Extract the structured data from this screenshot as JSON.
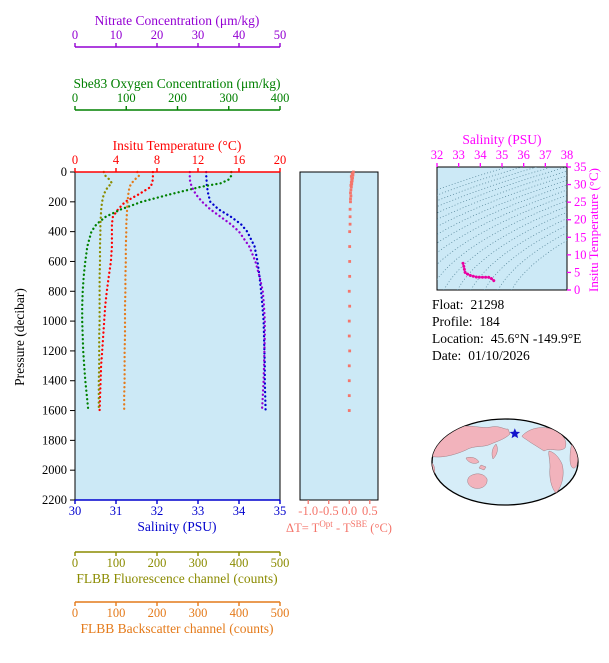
{
  "colors": {
    "nitrate": "#9400d3",
    "oxygen": "#008000",
    "temperature": "#ff0000",
    "salinity": "#0000cd",
    "fluorescence": "#8b8b00",
    "backscatter": "#e47a1a",
    "delta_t": "#f4756b",
    "ts_axis": "#ff00ff",
    "ts_curve": "#e800a0",
    "plot_bg": "#cce9f6",
    "map_land": "#f2b3bc",
    "map_ocean": "#d6edf8"
  },
  "labels": {
    "nitrate_axis": "Nitrate Concentration (μm/kg)",
    "oxygen_axis": "Sbe83 Oxygen Concentration (μm/kg)",
    "temperature_axis": "Insitu Temperature (°C)",
    "pressure_axis": "Pressure (decibar)",
    "salinity_axis": "Salinity (PSU)",
    "delta_t_prefix": "ΔT= T",
    "delta_t_sup1": "Opt",
    "delta_t_mid": " - T",
    "delta_t_sup2": "SBE",
    "delta_t_suffix": " (°C)",
    "ts_salinity_axis": "Salinity (PSU)",
    "ts_temperature_axis": "Insitu Temperature (°C)",
    "fluorescence_axis": "FLBB Fluorescence channel (counts)",
    "backscatter_axis": "FLBB Backscatter channel (counts)"
  },
  "info": {
    "float_label": "Float:",
    "float_value": "21298",
    "profile_label": "Profile:",
    "profile_value": "184",
    "location_label": "Location:",
    "location_value": "45.6°N  -149.9°E",
    "date_label": "Date:",
    "date_value": "01/10/2026"
  },
  "map": {
    "star": {
      "lat": 45.6,
      "lon": -149.9
    }
  },
  "chart_data": [
    {
      "id": "main_profile",
      "type": "line",
      "ylabel": "Pressure (decibar)",
      "ylim": [
        0,
        2200
      ],
      "yticks": [
        0,
        200,
        400,
        600,
        800,
        1000,
        1200,
        1400,
        1600,
        1800,
        2000,
        2200
      ],
      "pressure": [
        0,
        25,
        50,
        75,
        100,
        150,
        200,
        250,
        300,
        350,
        400,
        500,
        600,
        700,
        800,
        900,
        1000,
        1100,
        1200,
        1300,
        1400,
        1500,
        1600
      ],
      "series": [
        {
          "id": "salinity",
          "name": "Salinity (PSU)",
          "color": "#0000cd",
          "range": [
            30,
            35
          ],
          "ticks": [
            30,
            31,
            32,
            33,
            34,
            35
          ],
          "values": [
            33.2,
            33.2,
            33.21,
            33.21,
            33.22,
            33.25,
            33.3,
            33.5,
            33.8,
            34.05,
            34.2,
            34.38,
            34.45,
            34.5,
            34.54,
            34.57,
            34.6,
            34.61,
            34.62,
            34.63,
            34.63,
            34.64,
            34.65
          ]
        },
        {
          "id": "temperature",
          "name": "Insitu Temperature (°C)",
          "color": "#ff0000",
          "range": [
            0,
            20
          ],
          "ticks": [
            0,
            4,
            8,
            12,
            16,
            20
          ],
          "values": [
            7.6,
            7.6,
            7.6,
            7.5,
            7.4,
            6.2,
            4.9,
            4.2,
            3.7,
            3.6,
            3.6,
            3.6,
            3.5,
            3.3,
            3.1,
            2.95,
            2.85,
            2.75,
            2.65,
            2.55,
            2.5,
            2.45,
            2.4
          ]
        },
        {
          "id": "oxygen",
          "name": "Sbe83 Oxygen Concentration (μm/kg)",
          "color": "#008000",
          "range": [
            0,
            400
          ],
          "ticks": [
            0,
            100,
            200,
            300,
            400
          ],
          "values": [
            305,
            305,
            300,
            285,
            245,
            185,
            130,
            90,
            60,
            42,
            32,
            24,
            20,
            17,
            15,
            14,
            14,
            15,
            16,
            18,
            20,
            23,
            26
          ]
        },
        {
          "id": "nitrate",
          "name": "Nitrate Concentration (μm/kg)",
          "color": "#9400d3",
          "range": [
            0,
            50
          ],
          "ticks": [
            0,
            10,
            20,
            30,
            40,
            50
          ],
          "values": [
            28,
            28,
            28,
            28.2,
            28.5,
            29.5,
            31,
            33,
            35.5,
            38,
            40,
            42.5,
            44,
            45,
            45.8,
            46.1,
            46.3,
            46.3,
            46.2,
            46.1,
            46,
            45.8,
            45.6
          ]
        },
        {
          "id": "fluorescence",
          "name": "FLBB Fluorescence channel (counts)",
          "color": "#8b8b00",
          "range": [
            0,
            500
          ],
          "ticks": [
            0,
            100,
            200,
            300,
            400,
            500
          ],
          "values": [
            70,
            74,
            84,
            90,
            80,
            70,
            66,
            64,
            63,
            62,
            62,
            61,
            61,
            60,
            60,
            60,
            60,
            59,
            59,
            59,
            58,
            58,
            58
          ]
        },
        {
          "id": "backscatter",
          "name": "FLBB Backscatter channel (counts)",
          "color": "#e47a1a",
          "range": [
            0,
            500
          ],
          "ticks": [
            0,
            100,
            200,
            300,
            400,
            500
          ],
          "values": [
            152,
            156,
            146,
            138,
            133,
            130,
            128,
            127,
            126,
            125,
            125,
            124,
            124,
            123,
            123,
            122,
            122,
            122,
            121,
            121,
            121,
            120,
            120
          ]
        }
      ]
    },
    {
      "id": "delta_t",
      "type": "scatter",
      "xlabel": "ΔT= T^Opt - T^SBE (°C)",
      "xlim": [
        -1.2,
        0.7
      ],
      "xticks": [
        -1.0,
        -0.5,
        0.0,
        0.5
      ],
      "xtick_labels": [
        "-1.0",
        "-0.5",
        "0.0",
        "0.5"
      ],
      "ylim": [
        0,
        2200
      ],
      "color": "#f4756b",
      "pressure": [
        0,
        10,
        20,
        30,
        40,
        50,
        60,
        70,
        80,
        90,
        100,
        120,
        140,
        160,
        180,
        200,
        250,
        300,
        350,
        400,
        500,
        600,
        700,
        800,
        900,
        1000,
        1100,
        1200,
        1300,
        1400,
        1500,
        1600
      ],
      "values": [
        0.1,
        0.07,
        0.09,
        0.05,
        0.08,
        0.06,
        0.07,
        0.05,
        0.06,
        0.04,
        0.05,
        0.04,
        0.03,
        0.04,
        0.03,
        0.03,
        0.02,
        0.02,
        0.02,
        0.01,
        0.01,
        0.01,
        0.01,
        0.0,
        0.01,
        0.0,
        0.0,
        0.01,
        0.0,
        0.0,
        0.0,
        0.0
      ]
    },
    {
      "id": "ts_diagram",
      "type": "line",
      "xlabel": "Salinity (PSU)",
      "ylabel": "Insitu Temperature (°C)",
      "xlim": [
        32,
        38
      ],
      "xticks": [
        32,
        33,
        34,
        35,
        36,
        37,
        38
      ],
      "ylim": [
        0,
        35
      ],
      "yticks": [
        0,
        5,
        10,
        15,
        20,
        25,
        30,
        35
      ],
      "axis_color": "#ff00ff",
      "curve_color": "#e800a0",
      "sigma_levels": [
        20,
        20.5,
        21,
        21.5,
        22,
        22.5,
        23,
        23.5,
        24,
        24.5,
        25,
        25.5,
        26,
        26.5,
        27,
        27.5,
        28,
        28.5
      ],
      "points": [
        [
          33.2,
          7.6
        ],
        [
          33.21,
          7.5
        ],
        [
          33.22,
          7.4
        ],
        [
          33.25,
          6.2
        ],
        [
          33.3,
          4.9
        ],
        [
          33.5,
          4.2
        ],
        [
          33.8,
          3.7
        ],
        [
          34.05,
          3.6
        ],
        [
          34.2,
          3.6
        ],
        [
          34.38,
          3.6
        ],
        [
          34.45,
          3.5
        ],
        [
          34.5,
          3.3
        ],
        [
          34.54,
          3.1
        ],
        [
          34.6,
          2.85
        ],
        [
          34.62,
          2.65
        ],
        [
          34.64,
          2.5
        ],
        [
          34.65,
          2.4
        ]
      ]
    }
  ]
}
